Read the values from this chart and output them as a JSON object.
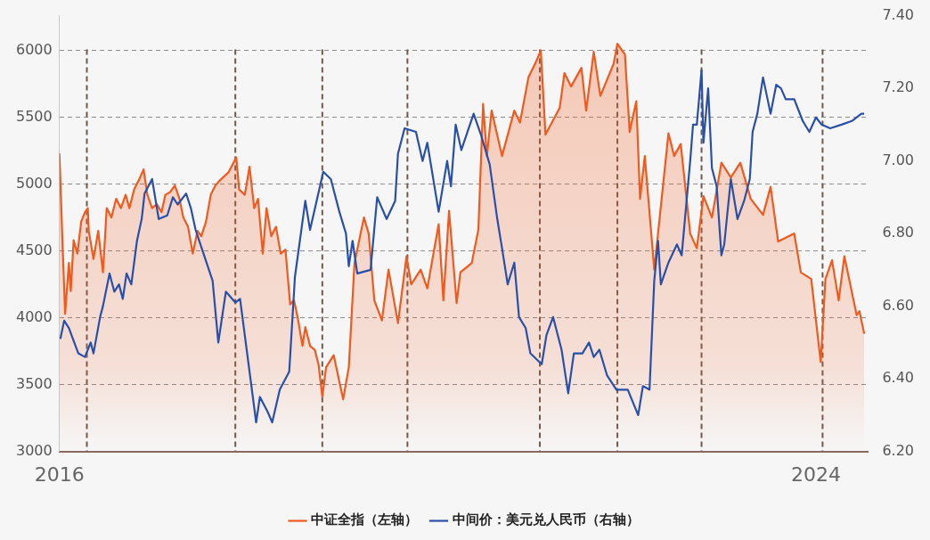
{
  "chart_data": {
    "type": "line",
    "xlim": [
      2016,
      2024.55
    ],
    "xticks": [
      2016,
      2024
    ],
    "ylim": [
      3000,
      6260
    ],
    "yticks": [
      3000,
      3500,
      4000,
      4500,
      5000,
      5500,
      6000
    ],
    "y2lim": [
      6.2,
      7.4
    ],
    "y2ticks": [
      {
        "value": 6.2,
        "label": "6.20"
      },
      {
        "value": 6.4,
        "label": "6.40"
      },
      {
        "value": 6.6,
        "label": "6.60"
      },
      {
        "value": 6.8,
        "label": "6.80"
      },
      {
        "value": 7.0,
        "label": "7.00"
      },
      {
        "value": 7.2,
        "label": "7.20"
      },
      {
        "value": 7.4,
        "label": "7.40"
      }
    ],
    "grid": "y",
    "legend": "bottom",
    "marker": "none",
    "ref_lines": [
      {
        "axis": "x",
        "value": 2016.29,
        "color": "#6e5a50",
        "line_style": "dashed"
      },
      {
        "axis": "x",
        "value": 2017.86,
        "color": "#6e5a50",
        "line_style": "dashed"
      },
      {
        "axis": "x",
        "value": 2018.78,
        "color": "#6e5a50",
        "line_style": "dashed"
      },
      {
        "axis": "x",
        "value": 2019.68,
        "color": "#6e5a50",
        "line_style": "dashed"
      },
      {
        "axis": "x",
        "value": 2021.08,
        "color": "#6e5a50",
        "line_style": "dashed"
      },
      {
        "axis": "x",
        "value": 2021.9,
        "color": "#6e5a50",
        "line_style": "dashed"
      },
      {
        "axis": "x",
        "value": 2022.79,
        "color": "#6e5a50",
        "line_style": "dashed"
      },
      {
        "axis": "x",
        "value": 2024.07,
        "color": "#6e5a50",
        "line_style": "dashed"
      }
    ],
    "series": [
      {
        "name": "中证全指（左轴）",
        "type": "area",
        "color": "#f05a1e",
        "x": [
          2016.0,
          2016.03,
          2016.06,
          2016.1,
          2016.12,
          2016.15,
          2016.19,
          2016.23,
          2016.27,
          2016.3,
          2016.31,
          2016.36,
          2016.41,
          2016.46,
          2016.5,
          2016.55,
          2016.6,
          2016.65,
          2016.7,
          2016.74,
          2016.79,
          2016.84,
          2016.89,
          2016.93,
          2016.98,
          2017.03,
          2017.08,
          2017.12,
          2017.17,
          2017.22,
          2017.27,
          2017.31,
          2017.36,
          2017.41,
          2017.46,
          2017.5,
          2017.55,
          2017.6,
          2017.65,
          2017.7,
          2017.79,
          2017.87,
          2017.9,
          2017.96,
          2018.01,
          2018.06,
          2018.1,
          2018.15,
          2018.19,
          2018.24,
          2018.29,
          2018.34,
          2018.39,
          2018.44,
          2018.48,
          2018.52,
          2018.57,
          2018.6,
          2018.65,
          2018.7,
          2018.74,
          2018.78,
          2018.82,
          2018.9,
          2019.0,
          2019.06,
          2019.12,
          2019.22,
          2019.27,
          2019.33,
          2019.41,
          2019.48,
          2019.58,
          2019.67,
          2019.72,
          2019.82,
          2019.89,
          2020.01,
          2020.06,
          2020.12,
          2020.2,
          2020.24,
          2020.36,
          2020.43,
          2020.48,
          2020.52,
          2020.57,
          2020.68,
          2020.81,
          2020.87,
          2020.96,
          2021.03,
          2021.09,
          2021.14,
          2021.29,
          2021.34,
          2021.41,
          2021.52,
          2021.57,
          2021.65,
          2021.72,
          2021.86,
          2021.9,
          2021.98,
          2022.03,
          2022.1,
          2022.14,
          2022.19,
          2022.29,
          2022.44,
          2022.5,
          2022.57,
          2022.67,
          2022.74,
          2022.81,
          2022.9,
          2023.0,
          2023.1,
          2023.2,
          2023.31,
          2023.44,
          2023.52,
          2023.6,
          2023.77,
          2023.84,
          2023.95,
          2024.05,
          2024.1,
          2024.17,
          2024.24,
          2024.3,
          2024.43,
          2024.46,
          2024.51
        ],
        "values": [
          5230,
          4610,
          4030,
          4410,
          4200,
          4580,
          4480,
          4720,
          4790,
          4820,
          4650,
          4440,
          4650,
          4340,
          4820,
          4750,
          4890,
          4820,
          4920,
          4820,
          4960,
          5030,
          5110,
          4920,
          4820,
          4850,
          4790,
          4920,
          4940,
          4990,
          4890,
          4750,
          4680,
          4480,
          4650,
          4610,
          4720,
          4920,
          4990,
          5030,
          5090,
          5200,
          4960,
          4920,
          5130,
          4820,
          4890,
          4480,
          4820,
          4610,
          4680,
          4480,
          4510,
          4100,
          4130,
          4000,
          3790,
          3930,
          3790,
          3760,
          3650,
          3410,
          3630,
          3720,
          3390,
          3630,
          4410,
          4750,
          4630,
          4130,
          3980,
          4360,
          3960,
          4460,
          4250,
          4360,
          4220,
          4700,
          4130,
          4800,
          4110,
          4340,
          4410,
          4660,
          5600,
          5210,
          5550,
          5210,
          5550,
          5460,
          5800,
          5900,
          6000,
          5370,
          5570,
          5830,
          5730,
          5870,
          5550,
          5990,
          5660,
          5900,
          6050,
          5970,
          5390,
          5620,
          4890,
          5210,
          4360,
          5380,
          5210,
          5300,
          4630,
          4520,
          4910,
          4750,
          5160,
          5050,
          5160,
          4890,
          4770,
          4980,
          4570,
          4630,
          4340,
          4290,
          3670,
          4290,
          4430,
          4130,
          4460,
          4020,
          4050,
          3880
        ]
      },
      {
        "name": "中间价：美元兑人民币（右轴）",
        "type": "line",
        "axis": "y2",
        "color": "#2a4fa8",
        "x": [
          2016.01,
          2016.05,
          2016.1,
          2016.2,
          2016.27,
          2016.33,
          2016.36,
          2016.43,
          2016.46,
          2016.53,
          2016.58,
          2016.63,
          2016.67,
          2016.71,
          2016.76,
          2016.82,
          2016.87,
          2016.9,
          2016.98,
          2017.05,
          2017.14,
          2017.2,
          2017.25,
          2017.34,
          2017.39,
          2017.44,
          2017.53,
          2017.62,
          2017.68,
          2017.76,
          2017.86,
          2017.91,
          2018.08,
          2018.12,
          2018.2,
          2018.25,
          2018.33,
          2018.43,
          2018.49,
          2018.6,
          2018.65,
          2018.79,
          2018.87,
          2018.96,
          2019.03,
          2019.06,
          2019.1,
          2019.15,
          2019.29,
          2019.36,
          2019.46,
          2019.55,
          2019.58,
          2019.65,
          2019.77,
          2019.84,
          2019.89,
          2020.01,
          2020.1,
          2020.14,
          2020.19,
          2020.25,
          2020.38,
          2020.46,
          2020.55,
          2020.63,
          2020.68,
          2020.74,
          2020.81,
          2020.86,
          2020.93,
          2020.98,
          2021.1,
          2021.15,
          2021.22,
          2021.31,
          2021.38,
          2021.44,
          2021.53,
          2021.6,
          2021.65,
          2021.71,
          2021.79,
          2021.89,
          2022.01,
          2022.12,
          2022.17,
          2022.24,
          2022.29,
          2022.33,
          2022.36,
          2022.44,
          2022.53,
          2022.58,
          2022.67,
          2022.7,
          2022.74,
          2022.79,
          2022.81,
          2022.86,
          2022.9,
          2022.95,
          2023.0,
          2023.03,
          2023.1,
          2023.17,
          2023.24,
          2023.3,
          2023.33,
          2023.38,
          2023.44,
          2023.52,
          2023.58,
          2023.63,
          2023.68,
          2023.77,
          2023.86,
          2023.93,
          2024.0,
          2024.06,
          2024.15,
          2024.27,
          2024.38,
          2024.48,
          2024.51
        ],
        "values": [
          6.51,
          6.56,
          6.54,
          6.47,
          6.46,
          6.5,
          6.47,
          6.57,
          6.6,
          6.69,
          6.64,
          6.66,
          6.62,
          6.69,
          6.66,
          6.78,
          6.84,
          6.91,
          6.95,
          6.84,
          6.85,
          6.9,
          6.88,
          6.91,
          6.87,
          6.81,
          6.74,
          6.67,
          6.5,
          6.64,
          6.61,
          6.62,
          6.28,
          6.35,
          6.31,
          6.28,
          6.37,
          6.42,
          6.68,
          6.89,
          6.81,
          6.97,
          6.95,
          6.86,
          6.8,
          6.71,
          6.78,
          6.69,
          6.7,
          6.9,
          6.84,
          6.89,
          7.02,
          7.09,
          7.08,
          7.0,
          7.05,
          6.86,
          7.0,
          6.93,
          7.1,
          7.03,
          7.13,
          7.07,
          6.99,
          6.84,
          6.76,
          6.66,
          6.72,
          6.57,
          6.54,
          6.47,
          6.44,
          6.52,
          6.57,
          6.48,
          6.36,
          6.47,
          6.47,
          6.5,
          6.46,
          6.48,
          6.41,
          6.37,
          6.37,
          6.3,
          6.38,
          6.37,
          6.67,
          6.78,
          6.66,
          6.72,
          6.77,
          6.74,
          7.0,
          7.1,
          7.1,
          7.25,
          7.05,
          7.2,
          6.98,
          6.93,
          6.74,
          6.77,
          6.95,
          6.84,
          6.89,
          6.95,
          7.08,
          7.13,
          7.23,
          7.13,
          7.21,
          7.2,
          7.17,
          7.17,
          7.11,
          7.08,
          7.12,
          7.1,
          7.09,
          7.1,
          7.11,
          7.13,
          7.13
        ]
      }
    ]
  }
}
